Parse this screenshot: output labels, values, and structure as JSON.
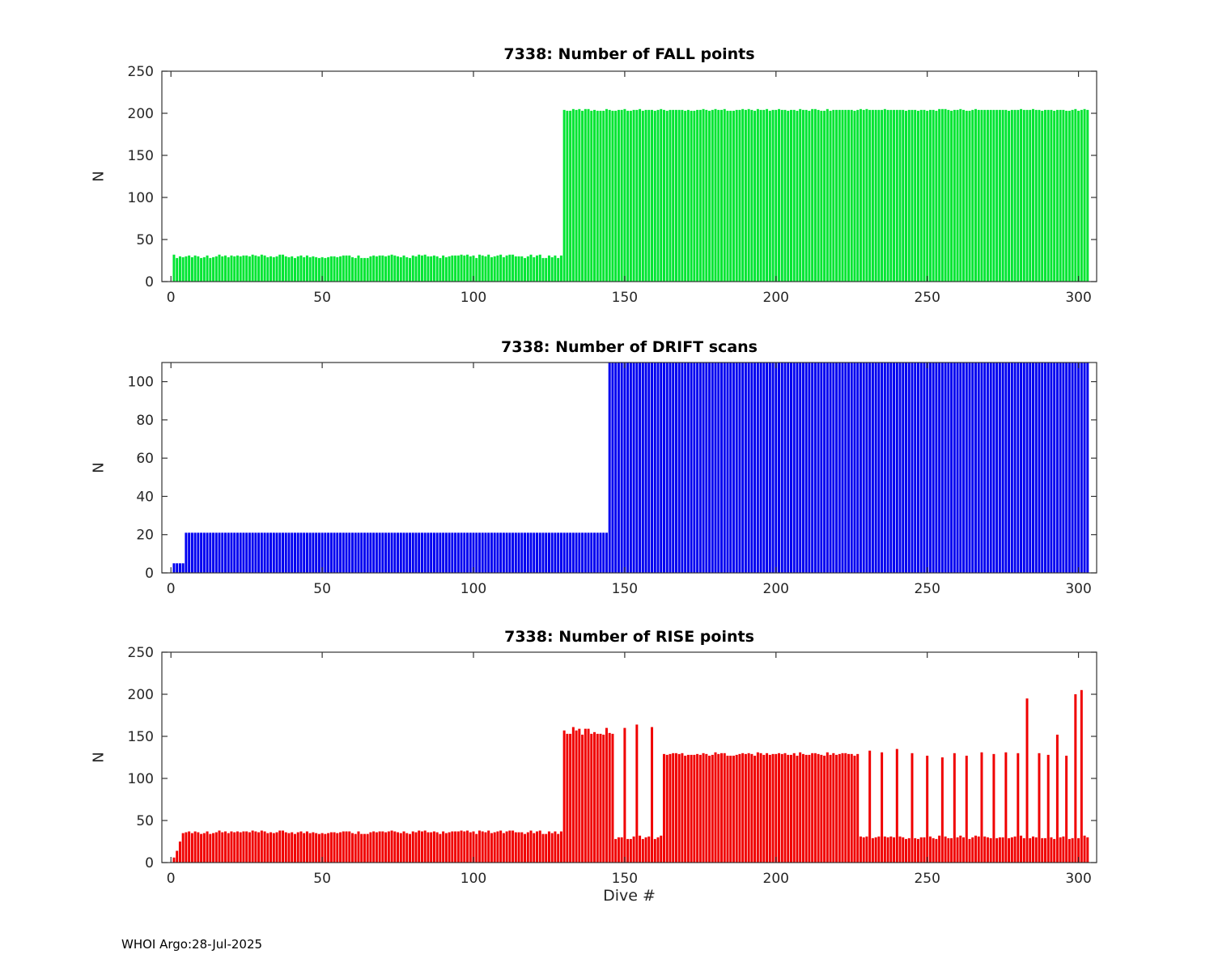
{
  "figure": {
    "footer": "WHOI Argo:28-Jul-2025"
  },
  "chart_data": [
    {
      "type": "bar",
      "id": "fall",
      "title": "7338: Number of FALL points",
      "ylabel": "N",
      "xlabel": "",
      "color": "#00e532",
      "xlim": [
        -3,
        306
      ],
      "ylim": [
        0,
        250
      ],
      "xticks": [
        0,
        50,
        100,
        150,
        200,
        250,
        300
      ],
      "yticks": [
        0,
        50,
        100,
        150,
        200,
        250
      ],
      "grid": false,
      "legend": "none",
      "segments": [
        {
          "from": 1,
          "to": 129,
          "value": 30,
          "jitter": 2
        },
        {
          "from": 130,
          "to": 303,
          "value": 204,
          "jitter": 1
        }
      ],
      "overrides": []
    },
    {
      "type": "bar",
      "id": "drift",
      "title": "7338: Number of DRIFT scans",
      "ylabel": "N",
      "xlabel": "",
      "color": "#0000f0",
      "xlim": [
        -3,
        306
      ],
      "ylim": [
        0,
        110
      ],
      "xticks": [
        0,
        50,
        100,
        150,
        200,
        250,
        300
      ],
      "yticks": [
        0,
        20,
        40,
        60,
        80,
        100
      ],
      "grid": false,
      "legend": "none",
      "segments": [
        {
          "from": 1,
          "to": 4,
          "value": 5,
          "jitter": 0
        },
        {
          "from": 5,
          "to": 144,
          "value": 21,
          "jitter": 0
        },
        {
          "from": 145,
          "to": 303,
          "value": 112,
          "jitter": 0
        }
      ],
      "overrides": []
    },
    {
      "type": "bar",
      "id": "rise",
      "title": "7338: Number of RISE points",
      "ylabel": "N",
      "xlabel": "Dive #",
      "color": "#f00000",
      "xlim": [
        -3,
        306
      ],
      "ylim": [
        0,
        250
      ],
      "xticks": [
        0,
        50,
        100,
        150,
        200,
        250,
        300
      ],
      "yticks": [
        0,
        50,
        100,
        150,
        200,
        250
      ],
      "grid": false,
      "legend": "none",
      "segments": [
        {
          "from": 1,
          "to": 1,
          "value": 6,
          "jitter": 0
        },
        {
          "from": 2,
          "to": 2,
          "value": 14,
          "jitter": 0
        },
        {
          "from": 3,
          "to": 3,
          "value": 25,
          "jitter": 0
        },
        {
          "from": 4,
          "to": 129,
          "value": 36,
          "jitter": 2
        },
        {
          "from": 130,
          "to": 146,
          "value": 156,
          "jitter": 5
        },
        {
          "from": 147,
          "to": 162,
          "value": 30,
          "jitter": 2
        },
        {
          "from": 163,
          "to": 227,
          "value": 129,
          "jitter": 2
        },
        {
          "from": 228,
          "to": 303,
          "value": 30,
          "jitter": 2
        }
      ],
      "overrides": [
        {
          "x": 150,
          "y": 160
        },
        {
          "x": 154,
          "y": 164
        },
        {
          "x": 159,
          "y": 161
        },
        {
          "x": 231,
          "y": 133
        },
        {
          "x": 235,
          "y": 131
        },
        {
          "x": 240,
          "y": 135
        },
        {
          "x": 245,
          "y": 130
        },
        {
          "x": 250,
          "y": 127
        },
        {
          "x": 255,
          "y": 125
        },
        {
          "x": 259,
          "y": 130
        },
        {
          "x": 263,
          "y": 127
        },
        {
          "x": 268,
          "y": 131
        },
        {
          "x": 272,
          "y": 129
        },
        {
          "x": 276,
          "y": 131
        },
        {
          "x": 280,
          "y": 130
        },
        {
          "x": 283,
          "y": 195
        },
        {
          "x": 287,
          "y": 130
        },
        {
          "x": 290,
          "y": 128
        },
        {
          "x": 293,
          "y": 152
        },
        {
          "x": 296,
          "y": 127
        },
        {
          "x": 299,
          "y": 200
        },
        {
          "x": 301,
          "y": 205
        }
      ]
    }
  ]
}
